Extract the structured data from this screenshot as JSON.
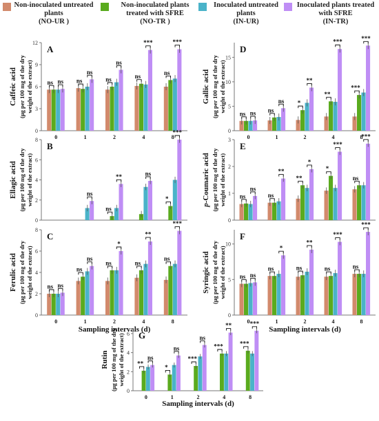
{
  "legend": [
    {
      "label": "Non-inoculated untreated plants",
      "sub": "(NO-UR )",
      "color": "#d28a6c"
    },
    {
      "label": "Non-inoculated plants treated with SFRE",
      "sub": "(NO-TR )",
      "color": "#5aab1e"
    },
    {
      "label": "Inoculated untreated plants",
      "sub": "(IN-UR)",
      "color": "#4ab3c9"
    },
    {
      "label": "Inoculated plants treated with SFRE",
      "sub": "(IN-TR)",
      "color": "#bf8ef5"
    }
  ],
  "xlabel": "Sampling intervals (d)",
  "ylabel_unit": "(µg per 100 mg of the dry weight of the extract)",
  "chart_data": [
    {
      "panel": "A",
      "type": "bar",
      "title": "Caffeic acid",
      "categories": [
        "0",
        "1",
        "2",
        "4",
        "8"
      ],
      "ylim": [
        0,
        12
      ],
      "yticks": [
        0,
        3,
        6,
        9,
        12
      ],
      "series": [
        {
          "name": "NO-UR",
          "values": [
            5.6,
            5.8,
            5.6,
            6.1,
            6.0
          ]
        },
        {
          "name": "NO-TR",
          "values": [
            5.6,
            5.7,
            6.0,
            6.4,
            6.9
          ]
        },
        {
          "name": "IN-UR",
          "values": [
            5.6,
            6.0,
            6.6,
            6.3,
            7.1
          ]
        },
        {
          "name": "IN-TR",
          "values": [
            5.7,
            7.0,
            8.3,
            11.0,
            11.1
          ]
        }
      ],
      "sig": [
        "ns",
        "ns",
        "ns",
        "***",
        "***"
      ],
      "sig_pair": [
        "ns",
        "ns",
        "ns",
        "ns",
        "ns"
      ]
    },
    {
      "panel": "B",
      "type": "bar",
      "title": "Ellagic acid",
      "categories": [
        "0",
        "1",
        "2",
        "4",
        "8"
      ],
      "ylim": [
        0,
        8
      ],
      "yticks": [
        0,
        2,
        4,
        6,
        8
      ],
      "series": [
        {
          "name": "NO-UR",
          "values": [
            0,
            0,
            0,
            0,
            0
          ]
        },
        {
          "name": "NO-TR",
          "values": [
            0,
            0,
            0.4,
            0.6,
            1.4
          ]
        },
        {
          "name": "IN-UR",
          "values": [
            0,
            1.2,
            1.2,
            3.3,
            4.0
          ]
        },
        {
          "name": "IN-TR",
          "values": [
            0,
            1.9,
            3.6,
            3.9,
            8.0
          ]
        }
      ],
      "sig": [
        "",
        "ns",
        "**",
        "ns",
        "***"
      ],
      "sig_pair": [
        "",
        "",
        "ns",
        "",
        "*"
      ]
    },
    {
      "panel": "C",
      "type": "bar",
      "title": "Ferulic acid",
      "categories": [
        "0",
        "1",
        "2",
        "4",
        "8"
      ],
      "ylim": [
        0,
        8
      ],
      "yticks": [
        0,
        2,
        4,
        6,
        8
      ],
      "series": [
        {
          "name": "NO-UR",
          "values": [
            2.0,
            3.2,
            3.2,
            3.5,
            3.3
          ]
        },
        {
          "name": "NO-TR",
          "values": [
            2.0,
            3.6,
            4.2,
            4.2,
            4.6
          ]
        },
        {
          "name": "IN-UR",
          "values": [
            2.0,
            4.1,
            4.2,
            4.8,
            4.8
          ]
        },
        {
          "name": "IN-TR",
          "values": [
            2.1,
            4.6,
            6.0,
            6.9,
            7.9
          ]
        }
      ],
      "sig": [
        "ns",
        "ns",
        "*",
        "**",
        "***"
      ],
      "sig_pair": [
        "ns",
        "ns",
        "ns",
        "ns",
        "ns"
      ]
    },
    {
      "panel": "D",
      "type": "bar",
      "title": "Gallic acid",
      "categories": [
        "0",
        "1",
        "2",
        "4",
        "8"
      ],
      "ylim": [
        0,
        18
      ],
      "yticks": [
        0,
        5,
        10,
        15
      ],
      "series": [
        {
          "name": "NO-UR",
          "values": [
            2.0,
            2.1,
            2.2,
            2.9,
            2.9
          ]
        },
        {
          "name": "NO-TR",
          "values": [
            2.0,
            2.7,
            4.2,
            6.0,
            7.3
          ]
        },
        {
          "name": "IN-UR",
          "values": [
            2.0,
            2.8,
            5.7,
            5.9,
            7.8
          ]
        },
        {
          "name": "IN-TR",
          "values": [
            2.1,
            4.6,
            8.8,
            16.7,
            17.4
          ]
        }
      ],
      "sig": [
        "ns",
        "ns",
        "**",
        "***",
        "***"
      ],
      "sig_pair": [
        "ns",
        "ns",
        "*",
        "**",
        "***"
      ]
    },
    {
      "panel": "E",
      "type": "bar",
      "title": "p-Coumaric acid",
      "categories": [
        "0",
        "1",
        "2",
        "4",
        "8"
      ],
      "ylim": [
        0,
        3
      ],
      "yticks": [
        0,
        1,
        2,
        3
      ],
      "series": [
        {
          "name": "NO-UR",
          "values": [
            0.6,
            0.65,
            0.8,
            1.1,
            1.15
          ]
        },
        {
          "name": "NO-TR",
          "values": [
            0.62,
            0.65,
            1.3,
            1.65,
            1.3
          ]
        },
        {
          "name": "IN-UR",
          "values": [
            0.6,
            0.7,
            1.2,
            1.2,
            1.3
          ]
        },
        {
          "name": "IN-TR",
          "values": [
            0.9,
            1.55,
            1.9,
            2.55,
            2.85
          ]
        }
      ],
      "sig": [
        "ns",
        "**",
        "*",
        "***",
        "***"
      ],
      "sig_pair": [
        "ns",
        "ns",
        "**",
        "*",
        "ns"
      ]
    },
    {
      "panel": "F",
      "type": "bar",
      "title": "Syringic acid",
      "categories": [
        "0",
        "1",
        "2",
        "4",
        "8"
      ],
      "ylim": [
        0,
        12
      ],
      "yticks": [
        0,
        5,
        10
      ],
      "series": [
        {
          "name": "NO-UR",
          "values": [
            4.4,
            5.5,
            5.4,
            5.4,
            5.8
          ]
        },
        {
          "name": "NO-TR",
          "values": [
            4.4,
            5.5,
            5.6,
            5.5,
            5.8
          ]
        },
        {
          "name": "IN-UR",
          "values": [
            4.5,
            5.8,
            6.1,
            5.9,
            5.8
          ]
        },
        {
          "name": "IN-TR",
          "values": [
            4.6,
            8.4,
            9.2,
            10.3,
            11.7
          ]
        }
      ],
      "sig": [
        "ns",
        "*",
        "**",
        "***",
        "***"
      ],
      "sig_pair": [
        "ns",
        "ns",
        "ns",
        "ns",
        "ns"
      ]
    },
    {
      "panel": "G",
      "type": "bar",
      "title": "Rutin",
      "categories": [
        "0",
        "1",
        "2",
        "4",
        "8"
      ],
      "ylim": [
        0,
        6.5
      ],
      "yticks": [
        0,
        2,
        4,
        6
      ],
      "series": [
        {
          "name": "NO-UR",
          "values": [
            0,
            0,
            0,
            0,
            0
          ]
        },
        {
          "name": "NO-TR",
          "values": [
            2.1,
            1.7,
            2.6,
            3.9,
            4.2
          ]
        },
        {
          "name": "IN-UR",
          "values": [
            2.5,
            2.7,
            3.6,
            3.9,
            3.9
          ]
        },
        {
          "name": "IN-TR",
          "values": [
            2.7,
            3.7,
            4.8,
            6.1,
            6.3
          ]
        }
      ],
      "sig": [
        "ns",
        "ns",
        "ns",
        "**",
        "***"
      ],
      "sig_pair": [
        "**",
        "*",
        "***",
        "***",
        "***"
      ]
    }
  ]
}
